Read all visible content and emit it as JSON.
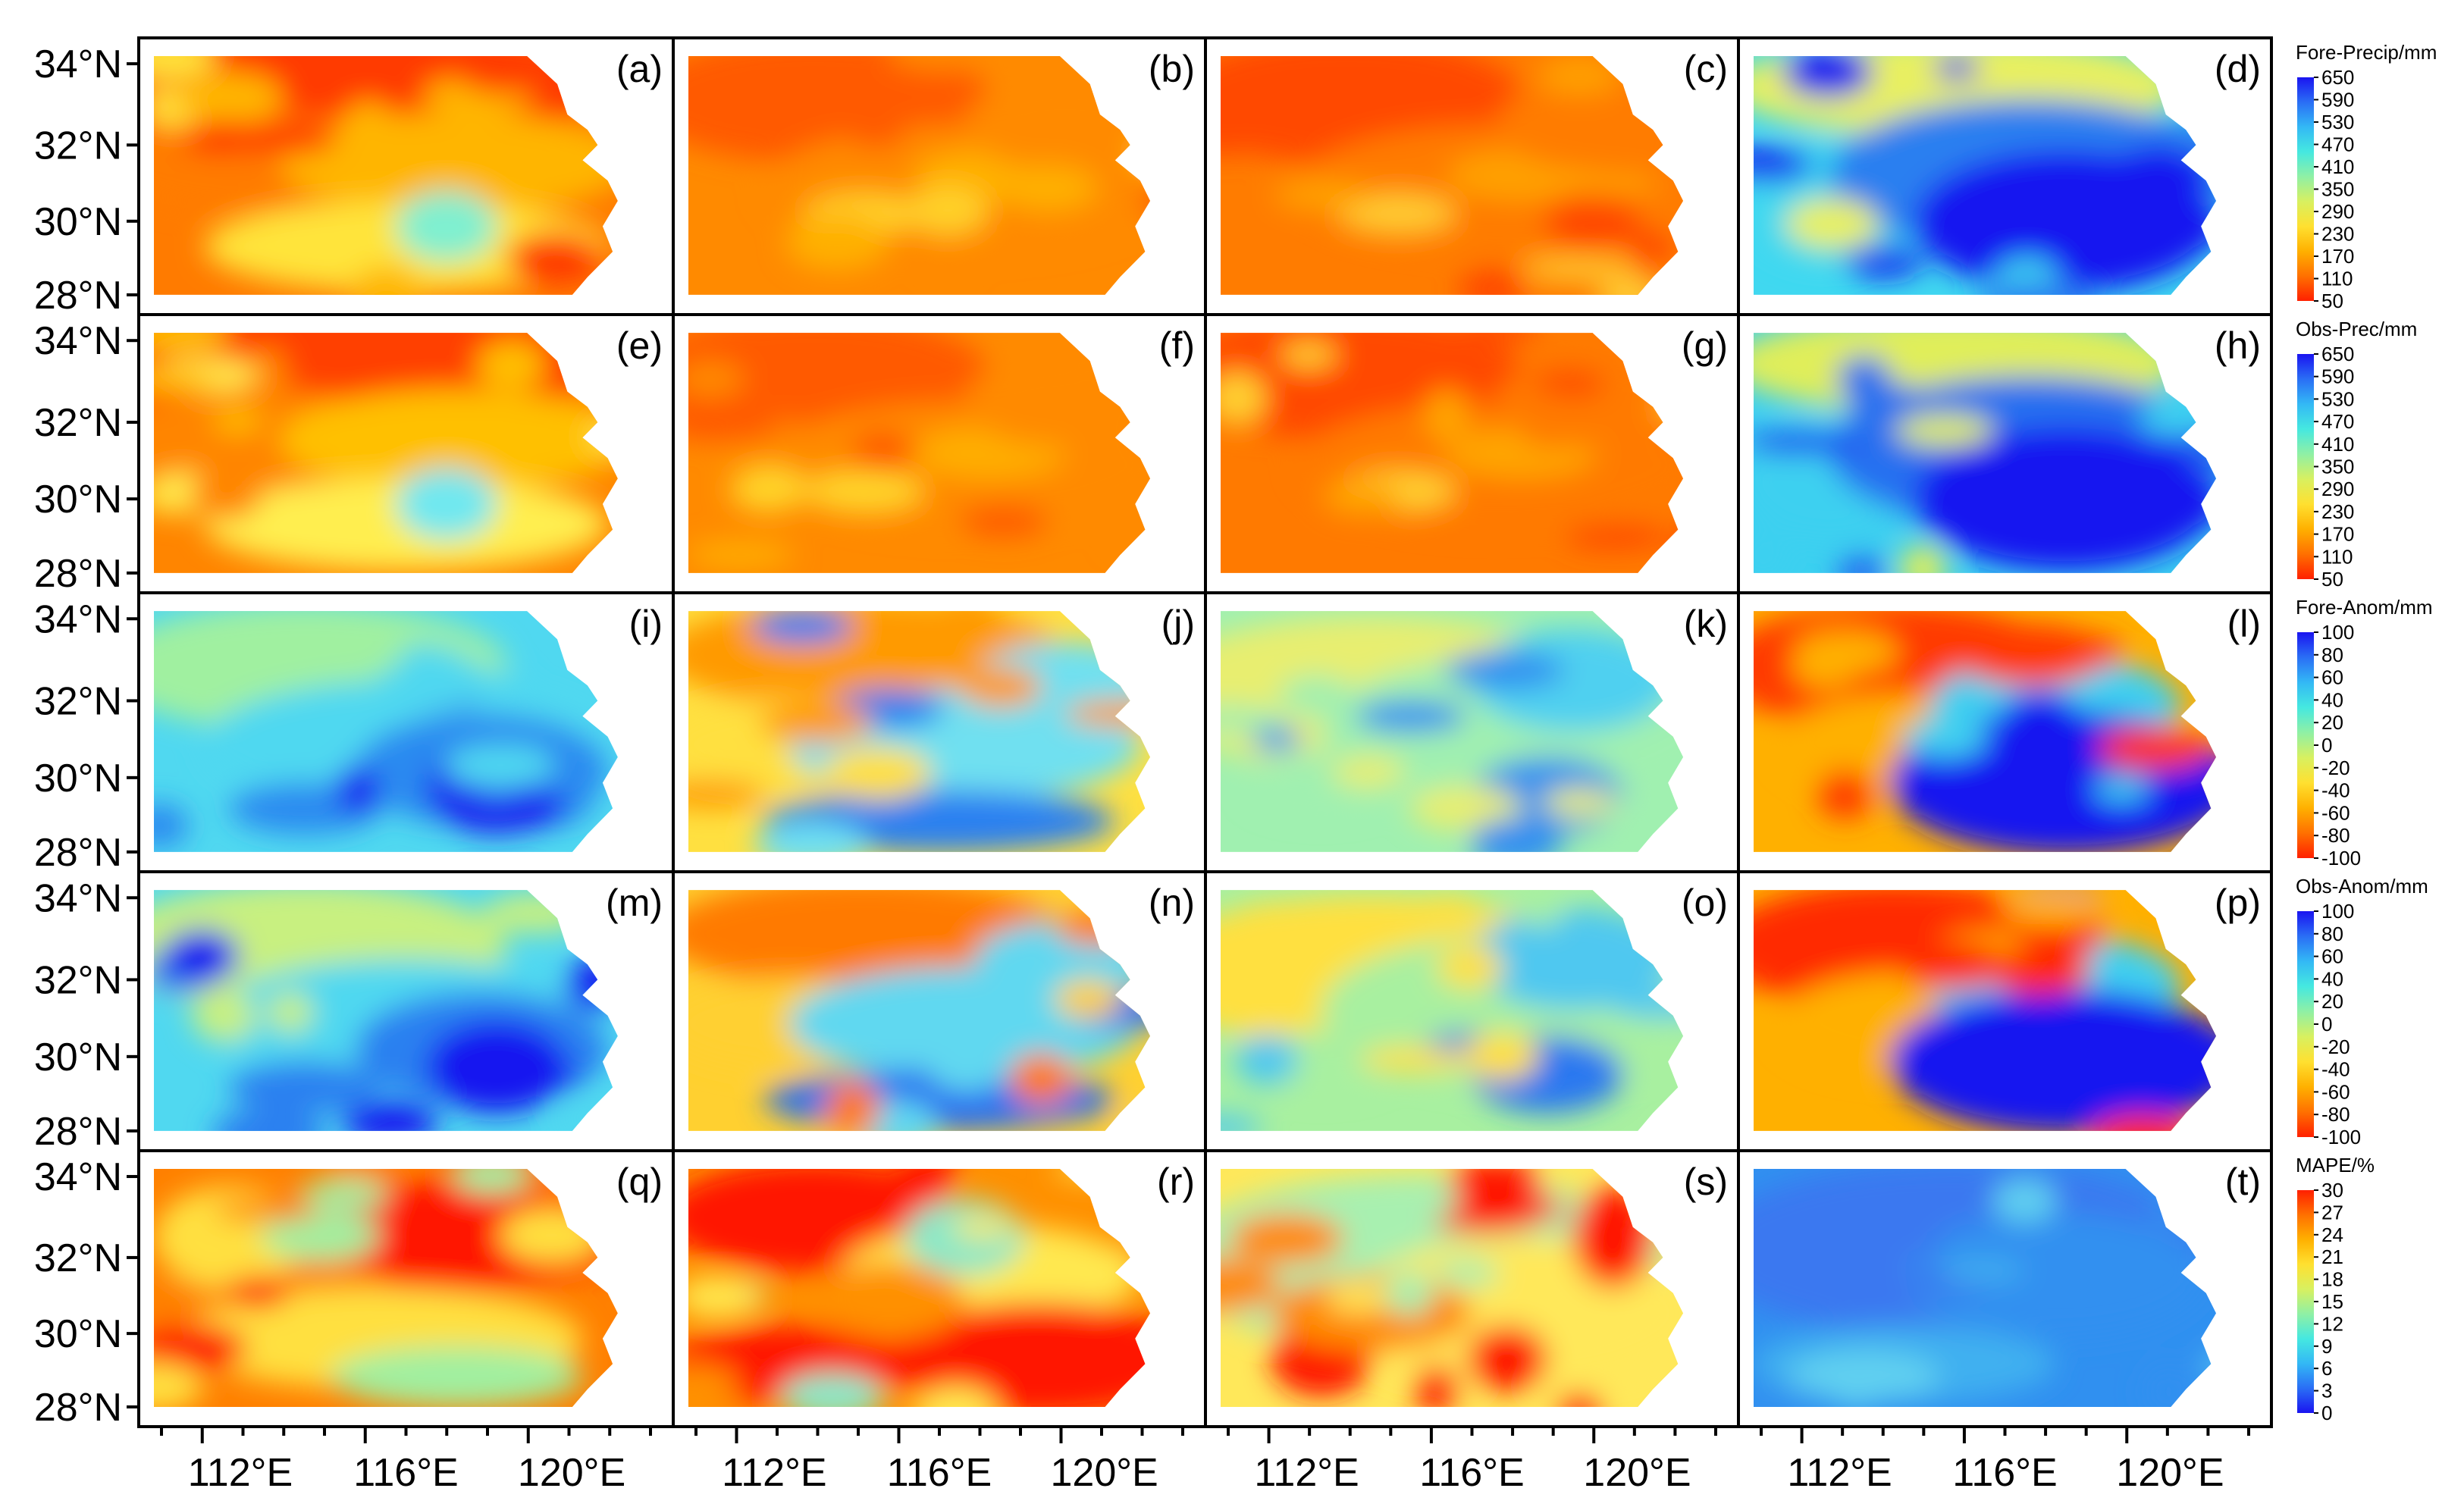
{
  "figure": {
    "latitude_ticks": [
      "34°N",
      "32°N",
      "30°N",
      "28°N"
    ],
    "longitude_ticks": [
      "112°E",
      "116°E",
      "120°E"
    ],
    "rows": [
      {
        "panels": [
          {
            "label": "(a)",
            "variable": "forecast precipitation",
            "pattern": "warm-north",
            "field_colors": [
              "#ff3a00",
              "#ff7b00",
              "#ffb500",
              "#ffe43a",
              "#7ff0d0"
            ]
          },
          {
            "label": "(b)",
            "variable": "forecast precipitation",
            "pattern": "warm",
            "field_colors": [
              "#ff5a00",
              "#ff8a00",
              "#ffb000",
              "#ffd12a"
            ]
          },
          {
            "label": "(c)",
            "variable": "forecast precipitation",
            "pattern": "warm",
            "field_colors": [
              "#ff4a00",
              "#ff7c00",
              "#ffa000",
              "#ffcb30"
            ]
          },
          {
            "label": "(d)",
            "variable": "forecast precipitation",
            "pattern": "cool-southeast",
            "field_colors": [
              "#e8f060",
              "#40d8f0",
              "#2a7ff0",
              "#1414f0"
            ]
          }
        ],
        "colorbar": {
          "title": "Fore-Precip/mm",
          "ticks": [
            "650",
            "590",
            "530",
            "470",
            "410",
            "350",
            "290",
            "230",
            "170",
            "110",
            "50"
          ],
          "colors": [
            "#1a14f0",
            "#2a6ef5",
            "#33b8f5",
            "#45e8e0",
            "#8ff0a5",
            "#d8f060",
            "#ffe030",
            "#ffb000",
            "#ff7000",
            "#ff2000"
          ]
        }
      },
      {
        "panels": [
          {
            "label": "(e)",
            "variable": "observed precipitation",
            "pattern": "warm-north",
            "field_colors": [
              "#ff4000",
              "#ff8500",
              "#ffc000",
              "#ffee50",
              "#70e8f0"
            ]
          },
          {
            "label": "(f)",
            "variable": "observed precipitation",
            "pattern": "warm",
            "field_colors": [
              "#ff5a00",
              "#ff8a00",
              "#ffae00",
              "#ffd52a"
            ]
          },
          {
            "label": "(g)",
            "variable": "observed precipitation",
            "pattern": "warm",
            "field_colors": [
              "#ff4a00",
              "#ff7a00",
              "#ffa500",
              "#ffd030"
            ]
          },
          {
            "label": "(h)",
            "variable": "observed precipitation",
            "pattern": "cool-southeast",
            "field_colors": [
              "#e0ee5a",
              "#3cd0f0",
              "#2770f0",
              "#1414f0"
            ]
          }
        ],
        "colorbar": {
          "title": "Obs-Prec/mm",
          "ticks": [
            "650",
            "590",
            "530",
            "470",
            "410",
            "350",
            "290",
            "230",
            "170",
            "110",
            "50"
          ],
          "colors": [
            "#1a14f0",
            "#2a6ef5",
            "#33b8f5",
            "#45e8e0",
            "#8ff0a5",
            "#d8f060",
            "#ffe030",
            "#ffb000",
            "#ff7000",
            "#ff2000"
          ]
        }
      },
      {
        "panels": [
          {
            "label": "(i)",
            "variable": "forecast anomaly",
            "pattern": "cool",
            "field_colors": [
              "#a0f0a0",
              "#50d8f0",
              "#2a8af0",
              "#1a20f0"
            ]
          },
          {
            "label": "(j)",
            "variable": "forecast anomaly",
            "pattern": "mixed",
            "field_colors": [
              "#ff9a00",
              "#ffe040",
              "#70e0f0",
              "#2a80f0"
            ]
          },
          {
            "label": "(k)",
            "variable": "forecast anomaly",
            "pattern": "mild",
            "field_colors": [
              "#e8ee70",
              "#a0f0b0",
              "#50d0f0",
              "#3090f0"
            ]
          },
          {
            "label": "(l)",
            "variable": "forecast anomaly",
            "pattern": "dipole",
            "field_colors": [
              "#ff3a00",
              "#ffb000",
              "#40d0f0",
              "#1414f0"
            ]
          }
        ],
        "colorbar": {
          "title": "Fore-Anom/mm",
          "ticks": [
            "100",
            "80",
            "60",
            "40",
            "20",
            "0",
            "-20",
            "-40",
            "-60",
            "-80",
            "-100"
          ],
          "colors": [
            "#1a14f0",
            "#2a6ef5",
            "#33b8f5",
            "#45e8e0",
            "#8ff0a5",
            "#d8f060",
            "#ffe030",
            "#ffb000",
            "#ff7000",
            "#ff2000"
          ]
        }
      },
      {
        "panels": [
          {
            "label": "(m)",
            "variable": "observed anomaly",
            "pattern": "cool",
            "field_colors": [
              "#c8f080",
              "#50d8f0",
              "#2a80f0",
              "#1414f0"
            ]
          },
          {
            "label": "(n)",
            "variable": "observed anomaly",
            "pattern": "mixed",
            "field_colors": [
              "#ff7a00",
              "#ffd030",
              "#60d8f0",
              "#2a70f0"
            ]
          },
          {
            "label": "(o)",
            "variable": "observed anomaly",
            "pattern": "mild",
            "field_colors": [
              "#ffe040",
              "#a8f0a0",
              "#50c8f0",
              "#2a78f0"
            ]
          },
          {
            "label": "(p)",
            "variable": "observed anomaly",
            "pattern": "dipole",
            "field_colors": [
              "#ff2a00",
              "#ffb000",
              "#40d0f0",
              "#1414f0"
            ]
          }
        ],
        "colorbar": {
          "title": "Obs-Anom/mm",
          "ticks": [
            "100",
            "80",
            "60",
            "40",
            "20",
            "0",
            "-20",
            "-40",
            "-60",
            "-80",
            "-100"
          ],
          "colors": [
            "#1a14f0",
            "#2a6ef5",
            "#33b8f5",
            "#45e8e0",
            "#8ff0a5",
            "#d8f060",
            "#ffe030",
            "#ffb000",
            "#ff7000",
            "#ff2000"
          ]
        }
      },
      {
        "panels": [
          {
            "label": "(q)",
            "variable": "MAPE",
            "pattern": "hot-north",
            "field_colors": [
              "#ff1400",
              "#ff8000",
              "#ffe040",
              "#a0f0a0"
            ]
          },
          {
            "label": "(r)",
            "variable": "MAPE",
            "pattern": "hot-bands",
            "field_colors": [
              "#ff1400",
              "#ff9000",
              "#ffe850",
              "#8ae8c8"
            ]
          },
          {
            "label": "(s)",
            "variable": "MAPE",
            "pattern": "mild-hotspots",
            "field_colors": [
              "#a8f0b0",
              "#ffe85a",
              "#ff8a00",
              "#ff1400"
            ]
          },
          {
            "label": "(t)",
            "variable": "MAPE",
            "pattern": "low",
            "field_colors": [
              "#3a78f0",
              "#3090f0",
              "#40b0f0",
              "#60d0f0"
            ]
          }
        ],
        "colorbar": {
          "title": "MAPE/%",
          "ticks": [
            "30",
            "27",
            "24",
            "21",
            "18",
            "15",
            "12",
            "9",
            "6",
            "3",
            "0"
          ],
          "colors": [
            "#ff2000",
            "#ff7000",
            "#ffb000",
            "#ffe030",
            "#d8f060",
            "#8ff0a5",
            "#45e8e0",
            "#33b8f5",
            "#2a6ef5",
            "#1a14f0"
          ]
        }
      }
    ]
  }
}
